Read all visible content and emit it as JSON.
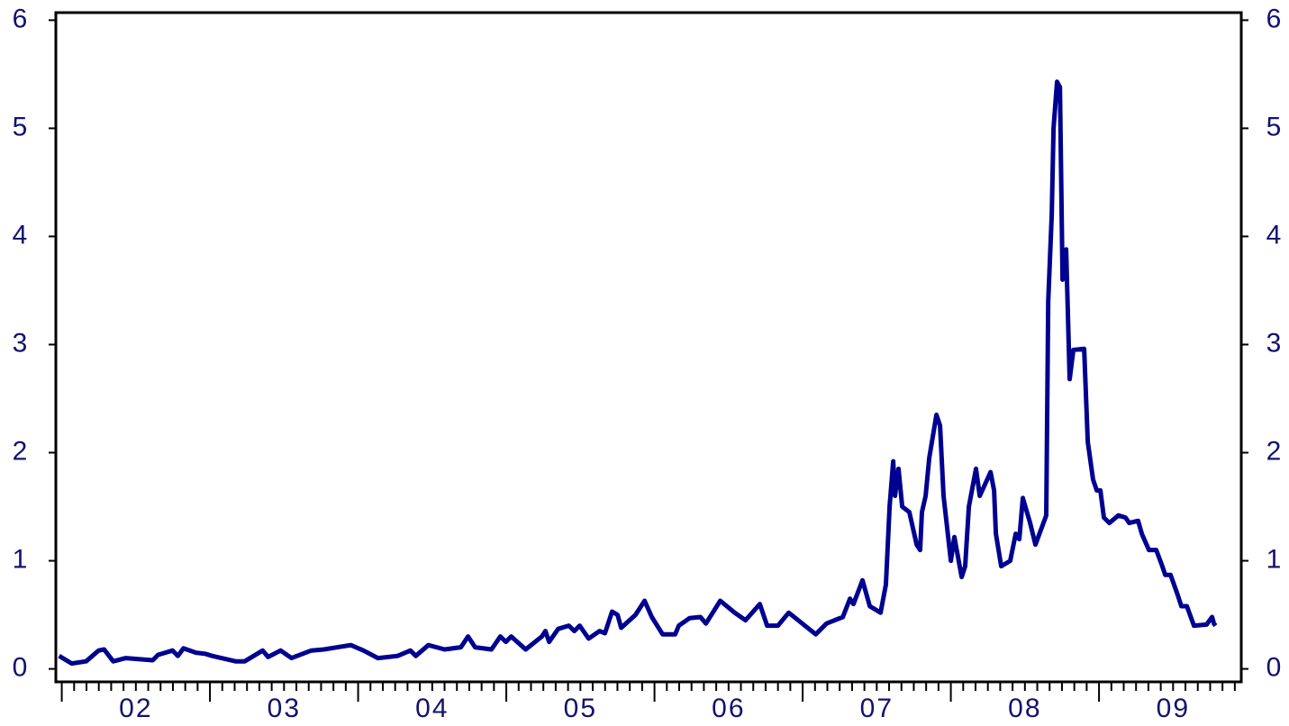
{
  "chart_data": {
    "type": "line",
    "x": [
      1.982,
      2.067,
      2.164,
      2.249,
      2.286,
      2.347,
      2.432,
      2.614,
      2.65,
      2.748,
      2.784,
      2.821,
      2.906,
      2.967,
      3.015,
      3.173,
      3.234,
      3.356,
      3.392,
      3.477,
      3.55,
      3.684,
      3.769,
      3.951,
      4.036,
      4.134,
      4.267,
      4.353,
      4.389,
      4.474,
      4.584,
      4.693,
      4.742,
      4.79,
      4.9,
      4.96,
      4.997,
      5.033,
      5.131,
      5.24,
      5.264,
      5.289,
      5.35,
      5.422,
      5.459,
      5.495,
      5.556,
      5.629,
      5.666,
      5.714,
      5.751,
      5.775,
      5.872,
      5.933,
      5.982,
      6.055,
      6.14,
      6.164,
      6.237,
      6.31,
      6.347,
      6.444,
      6.541,
      6.614,
      6.711,
      6.76,
      6.833,
      6.906,
      7.088,
      7.161,
      7.271,
      7.319,
      7.343,
      7.404,
      7.453,
      7.526,
      7.562,
      7.587,
      7.611,
      7.623,
      7.647,
      7.672,
      7.72,
      7.769,
      7.793,
      7.805,
      7.83,
      7.854,
      7.903,
      7.927,
      7.951,
      8.0,
      8.024,
      8.073,
      8.097,
      8.122,
      8.17,
      8.195,
      8.268,
      8.292,
      8.304,
      8.34,
      8.401,
      8.438,
      8.462,
      8.486,
      8.535,
      8.571,
      8.644,
      8.657,
      8.681,
      8.693,
      8.717,
      8.736,
      8.754,
      8.778,
      8.802,
      8.827,
      8.9,
      8.924,
      8.96,
      8.985,
      9.009,
      9.033,
      9.07,
      9.131,
      9.179,
      9.204,
      9.264,
      9.289,
      9.337,
      9.386,
      9.422,
      9.447,
      9.483,
      9.532,
      9.556,
      9.593,
      9.641,
      9.726,
      9.763,
      9.775,
      9.787
    ],
    "series": [
      {
        "color": "#000090",
        "values": [
          0.12,
          0.05,
          0.07,
          0.17,
          0.18,
          0.07,
          0.1,
          0.08,
          0.13,
          0.17,
          0.12,
          0.19,
          0.15,
          0.14,
          0.12,
          0.07,
          0.07,
          0.17,
          0.11,
          0.17,
          0.1,
          0.17,
          0.18,
          0.22,
          0.17,
          0.1,
          0.12,
          0.17,
          0.12,
          0.22,
          0.18,
          0.2,
          0.3,
          0.2,
          0.18,
          0.3,
          0.25,
          0.3,
          0.18,
          0.3,
          0.35,
          0.25,
          0.37,
          0.4,
          0.35,
          0.4,
          0.28,
          0.35,
          0.33,
          0.53,
          0.5,
          0.38,
          0.5,
          0.63,
          0.48,
          0.32,
          0.32,
          0.4,
          0.47,
          0.48,
          0.42,
          0.63,
          0.52,
          0.45,
          0.6,
          0.4,
          0.4,
          0.52,
          0.32,
          0.42,
          0.48,
          0.65,
          0.6,
          0.82,
          0.58,
          0.52,
          0.78,
          1.5,
          1.92,
          1.6,
          1.85,
          1.5,
          1.45,
          1.15,
          1.1,
          1.45,
          1.6,
          1.95,
          2.35,
          2.25,
          1.6,
          1.0,
          1.22,
          0.85,
          0.95,
          1.5,
          1.85,
          1.6,
          1.82,
          1.65,
          1.25,
          0.95,
          1.0,
          1.25,
          1.2,
          1.58,
          1.35,
          1.15,
          1.42,
          3.4,
          4.2,
          5.0,
          5.43,
          5.38,
          3.6,
          3.88,
          2.68,
          2.95,
          2.96,
          2.1,
          1.75,
          1.65,
          1.65,
          1.4,
          1.35,
          1.42,
          1.4,
          1.35,
          1.37,
          1.25,
          1.1,
          1.1,
          0.97,
          0.87,
          0.87,
          0.68,
          0.58,
          0.58,
          0.4,
          0.41,
          0.48,
          0.42,
          0.4
        ]
      }
    ],
    "xlim": [
      1.96,
      9.96
    ],
    "xticks": [
      {
        "value": 2,
        "label": "02"
      },
      {
        "value": 3,
        "label": "03"
      },
      {
        "value": 4,
        "label": "04"
      },
      {
        "value": 5,
        "label": "05"
      },
      {
        "value": 6,
        "label": "06"
      },
      {
        "value": 7,
        "label": "07"
      },
      {
        "value": 8,
        "label": "08"
      },
      {
        "value": 9,
        "label": "09"
      }
    ],
    "ylim": [
      -0.12,
      6.07
    ],
    "yticks": [
      0,
      1,
      2,
      3,
      4,
      5,
      6
    ],
    "y2lim": [
      -0.12,
      6.07
    ],
    "y2ticks": [
      0,
      1,
      2,
      3,
      4,
      5,
      6
    ]
  }
}
